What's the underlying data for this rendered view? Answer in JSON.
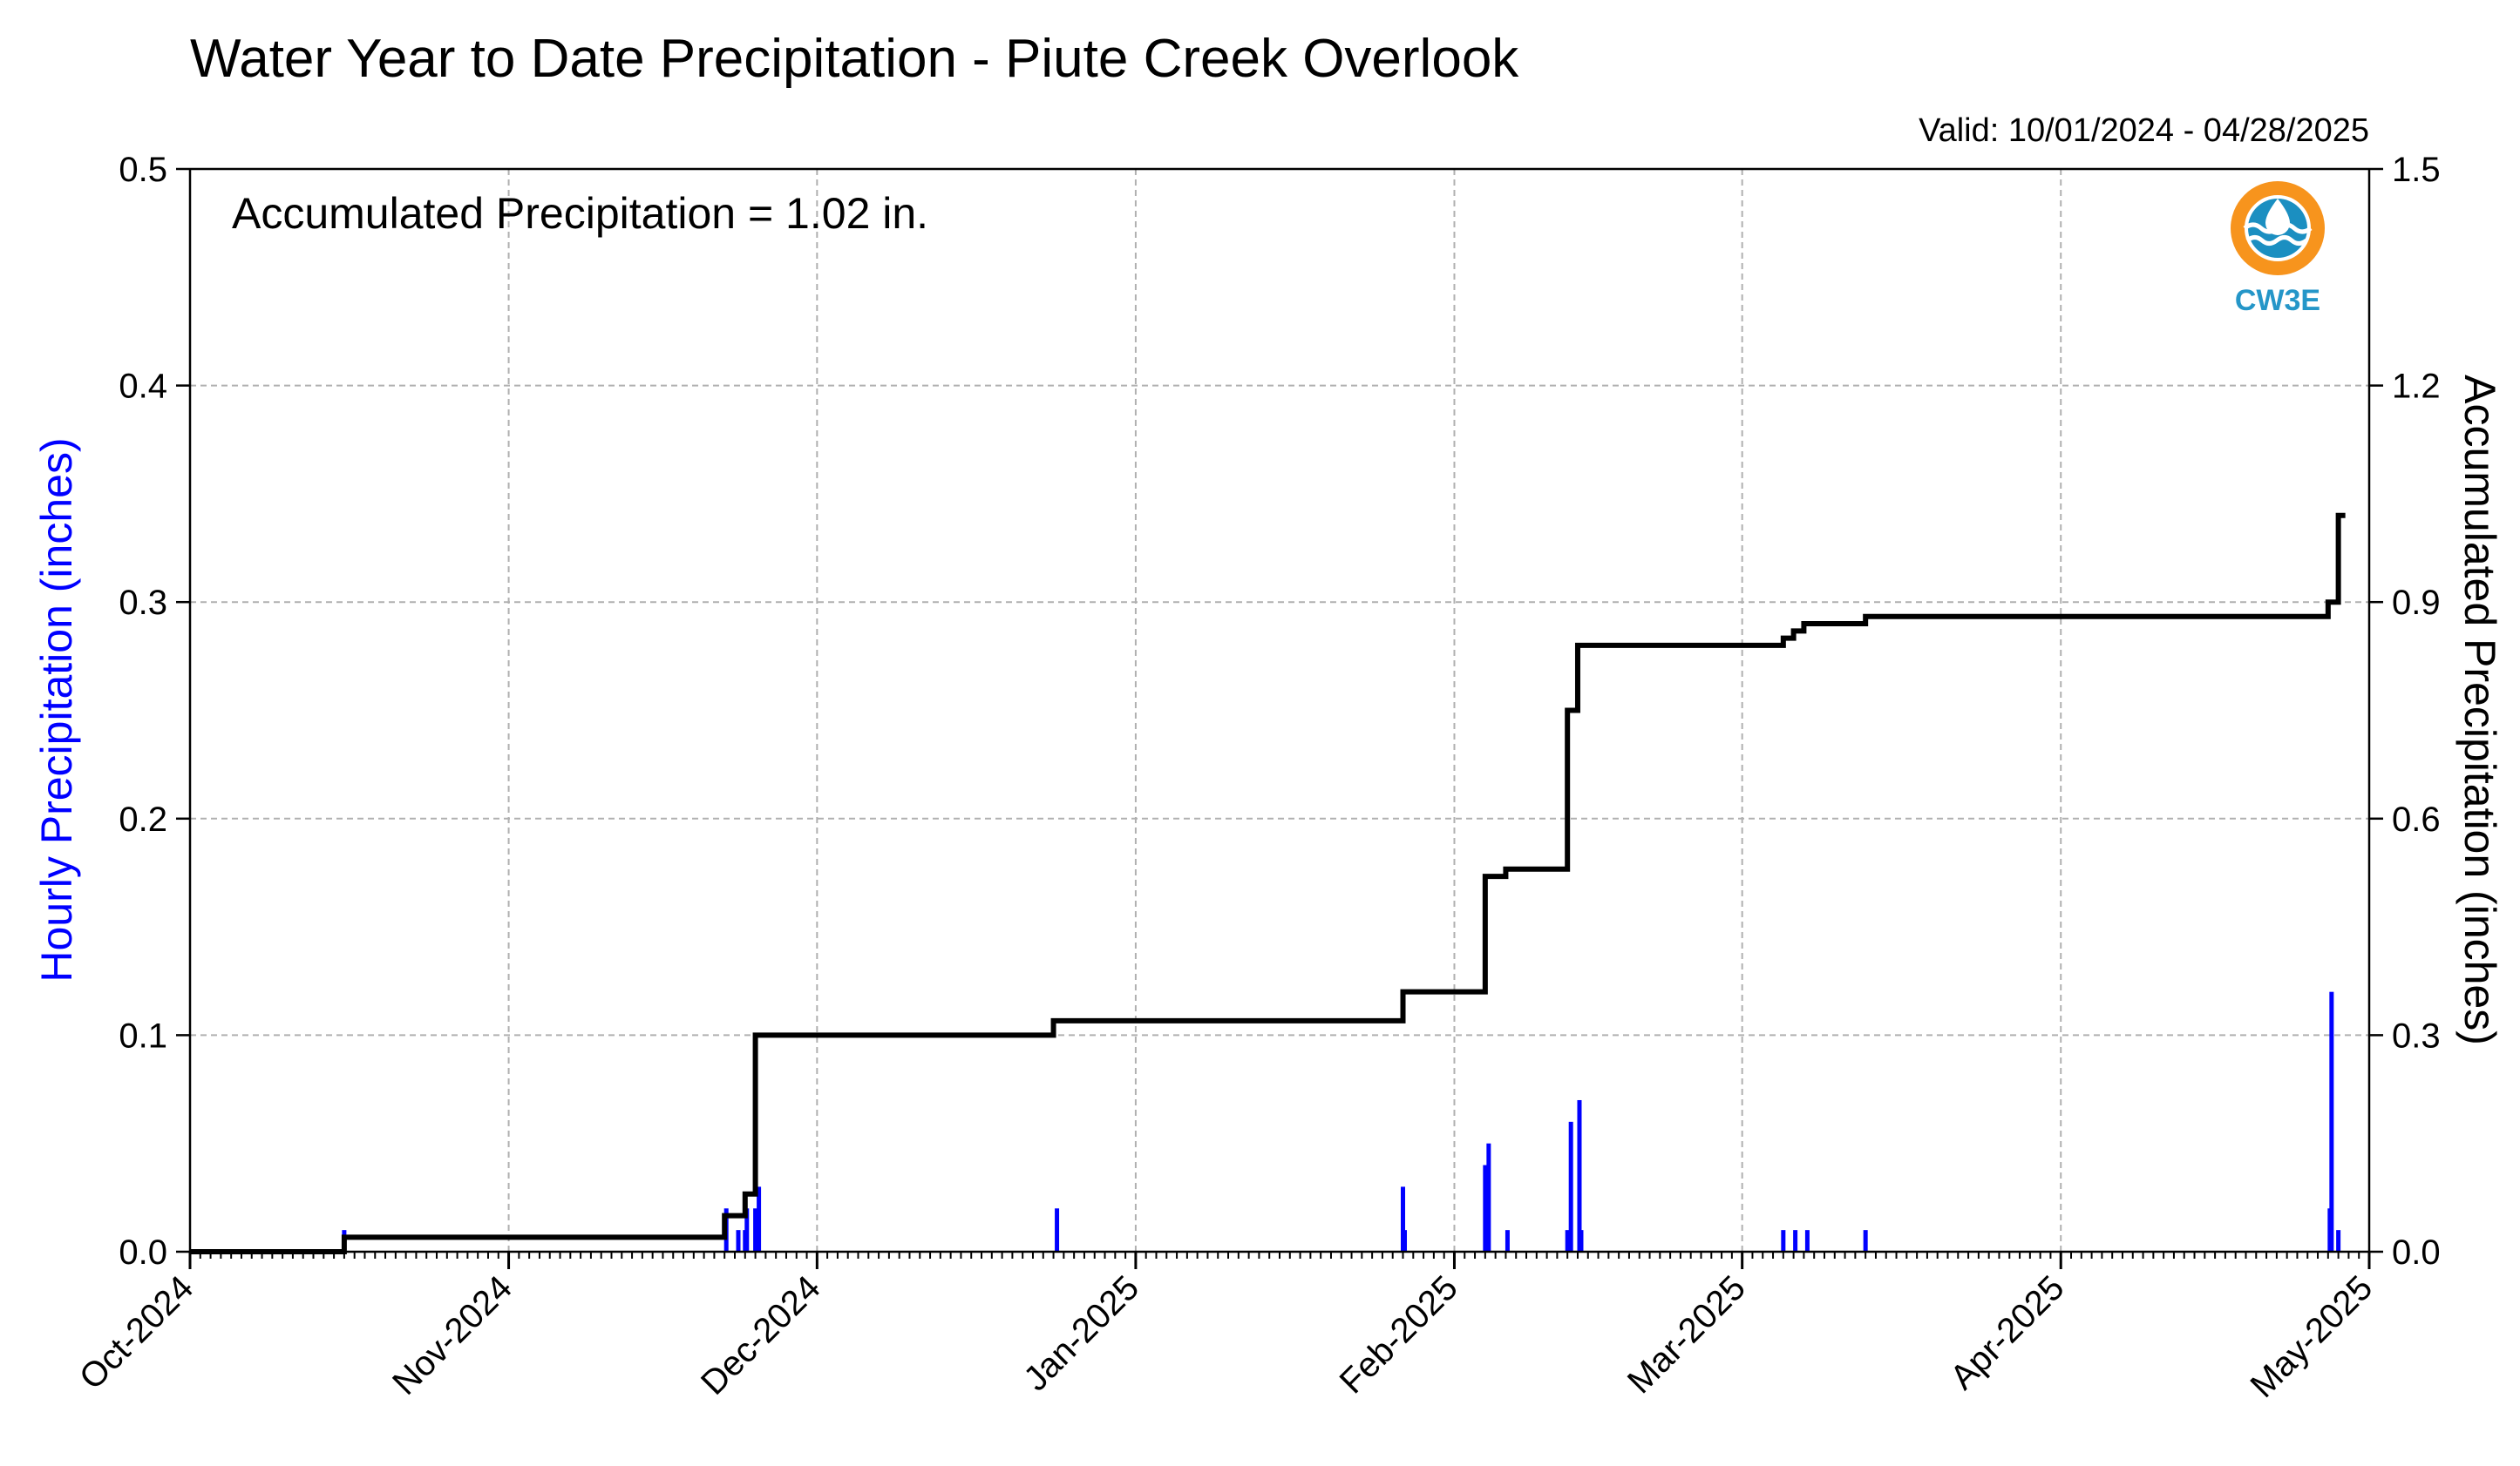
{
  "chart_data": {
    "type": "bar+line",
    "title": "Water Year to Date Precipitation - Piute Creek Overlook",
    "subtitle": "Valid: 10/01/2024 - 04/28/2025",
    "annotation": "Accumulated Precipitation = 1.02 in.",
    "ylabel_left": "Hourly Precipitation (inches)",
    "ylabel_right": "Accumulated Precipitation (inches)",
    "ylim_left": [
      0,
      0.5
    ],
    "ylim_right": [
      0,
      1.5
    ],
    "xlim": [
      "2024-10-01",
      "2025-05-01"
    ],
    "grid": true,
    "x_tick_labels": [
      "Oct-2024",
      "Nov-2024",
      "Dec-2024",
      "Jan-2025",
      "Feb-2025",
      "Mar-2025",
      "Apr-2025",
      "May-2025"
    ],
    "y_tick_labels_left": [
      "0.0",
      "0.1",
      "0.2",
      "0.3",
      "0.4",
      "0.5"
    ],
    "y_tick_labels_right": [
      "0.0",
      "0.3",
      "0.6",
      "0.9",
      "1.2",
      "1.5"
    ],
    "series": [
      {
        "name": "Hourly Precipitation",
        "axis": "left",
        "style": "bar",
        "color": "#0000ff",
        "x": [
          "2024-10-16",
          "2024-11-22",
          "2024-11-23",
          "2024-11-24",
          "2024-11-24",
          "2024-11-25",
          "2024-11-25",
          "2024-11-25",
          "2024-12-24",
          "2025-01-27",
          "2025-01-27",
          "2025-02-04",
          "2025-02-04",
          "2025-02-06",
          "2025-02-12",
          "2025-02-12",
          "2025-02-13",
          "2025-02-13",
          "2025-03-05",
          "2025-03-06",
          "2025-03-07",
          "2025-03-13",
          "2025-04-27",
          "2025-04-27",
          "2025-04-28"
        ],
        "values": [
          0.01,
          0.02,
          0.01,
          0.01,
          0.02,
          0.03,
          0.02,
          0.01,
          0.02,
          0.03,
          0.01,
          0.05,
          0.04,
          0.01,
          0.06,
          0.01,
          0.07,
          0.01,
          0.01,
          0.01,
          0.01,
          0.01,
          0.02,
          0.12,
          0.01
        ]
      },
      {
        "name": "Accumulated Precipitation",
        "axis": "right",
        "style": "step",
        "color": "#000000",
        "x": [
          "2024-10-01",
          "2024-10-16",
          "2024-11-22",
          "2024-11-24",
          "2024-11-25",
          "2024-11-25",
          "2024-11-25",
          "2024-12-24",
          "2025-01-27",
          "2025-02-04",
          "2025-02-05",
          "2025-02-06",
          "2025-02-12",
          "2025-02-12",
          "2025-02-13",
          "2025-02-13",
          "2025-03-05",
          "2025-03-06",
          "2025-03-07",
          "2025-03-13",
          "2025-04-27",
          "2025-04-28"
        ],
        "values": [
          0.0,
          0.02,
          0.05,
          0.08,
          0.11,
          0.26,
          0.3,
          0.32,
          0.36,
          0.52,
          0.52,
          0.53,
          0.62,
          0.75,
          0.76,
          0.84,
          0.85,
          0.86,
          0.87,
          0.88,
          0.9,
          1.02
        ]
      }
    ]
  },
  "logo": {
    "text": "CW3E",
    "colors": {
      "orange": "#f7941d",
      "teal": "#1b8fc1",
      "text": "#2596c8"
    }
  }
}
